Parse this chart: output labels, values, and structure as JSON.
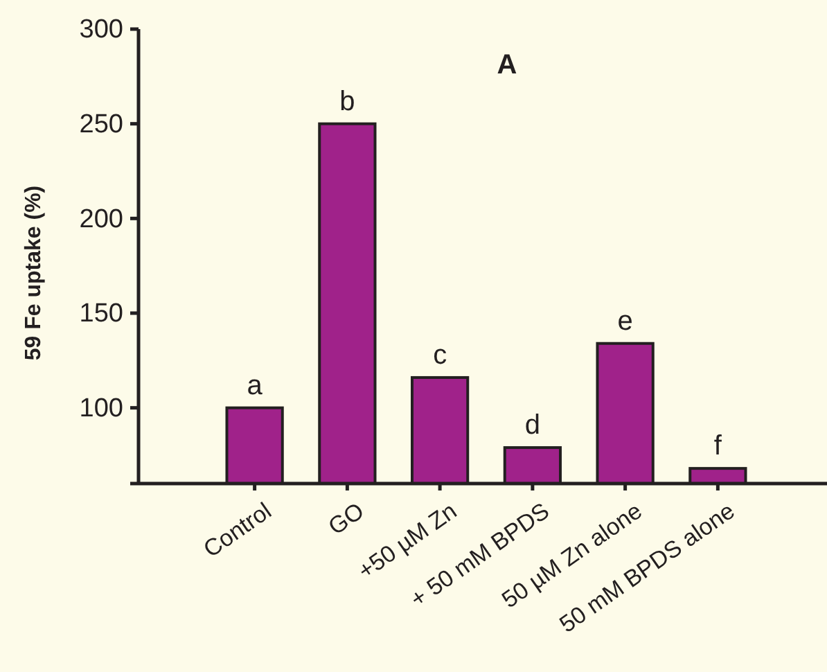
{
  "chart_data": {
    "type": "bar",
    "title": "A",
    "ylabel": "59 Fe uptake (%)",
    "categories": [
      "Control",
      "GO",
      "+50 µM Zn",
      "+ 50 mM BPDS",
      "50 µM Zn alone",
      "50 mM BPDS alone"
    ],
    "values": [
      100,
      250,
      116,
      79,
      134,
      68
    ],
    "color": "#a0228a",
    "ylim": [
      60,
      300
    ],
    "yticks": [
      {
        "value": 60,
        "label": null
      },
      100,
      150,
      200,
      250,
      300
    ],
    "grid": false,
    "annotations": [
      {
        "text": "a",
        "x": "Control",
        "y": 100
      },
      {
        "text": "b",
        "x": "GO",
        "y": 250
      },
      {
        "text": "c",
        "x": "+50 µM Zn",
        "y": 116
      },
      {
        "text": "d",
        "x": "+ 50 mM BPDS",
        "y": 79
      },
      {
        "text": "e",
        "x": "50 µM Zn alone",
        "y": 134
      },
      {
        "text": "f",
        "x": "50 mM BPDS alone",
        "y": 68
      }
    ]
  }
}
